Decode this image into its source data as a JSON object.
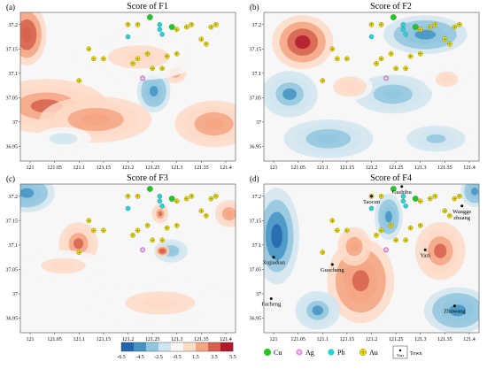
{
  "figure": {
    "colors": {
      "cu": "#22c722",
      "ag": "#e38be3",
      "pb": "#22d5d8",
      "au": "#f2e600",
      "town": "#000000",
      "frame": "#666666"
    },
    "legend": {
      "items": [
        {
          "symbol": "cu-marker",
          "label": "Cu"
        },
        {
          "symbol": "ag-marker",
          "label": "Ag"
        },
        {
          "symbol": "pb-marker",
          "label": "Pb"
        },
        {
          "symbol": "au-marker",
          "label": "Au"
        },
        {
          "symbol": "town-marker",
          "label": "Town",
          "box_label": "Yazi"
        }
      ]
    }
  },
  "chart_data": {
    "type": "heatmap",
    "panels": [
      {
        "id": "F1",
        "letter": "(a)",
        "title": "Score of F1"
      },
      {
        "id": "F2",
        "letter": "(b)",
        "title": "Score of F2"
      },
      {
        "id": "F3",
        "letter": "(c)",
        "title": "Score of F3"
      },
      {
        "id": "F4",
        "letter": "(d)",
        "title": "Score of F4"
      }
    ],
    "x_ticks": [
      "121",
      "121.05",
      "121.1",
      "121.15",
      "121.2",
      "121.25",
      "121.3",
      "121.35",
      "121.4"
    ],
    "y_ticks": [
      "37.2",
      "37.15",
      "37.1",
      "37.05",
      "37",
      "36.95"
    ],
    "x_tick_values": [
      121,
      121.05,
      121.1,
      121.15,
      121.2,
      121.25,
      121.3,
      121.35,
      121.4
    ],
    "y_tick_values": [
      37.2,
      37.15,
      37.1,
      37.05,
      37,
      36.95
    ],
    "xlim": [
      120.98,
      121.42
    ],
    "ylim": [
      36.92,
      37.225
    ],
    "colorbar": {
      "ticks": [
        "-6.5",
        "-4.5",
        "-2.5",
        "-0.5",
        "1.5",
        "3.5",
        "5.5"
      ],
      "range": [
        -6.5,
        5.5
      ],
      "colors": [
        "#2166ac",
        "#4393c3",
        "#92c5de",
        "#d1e5f0",
        "#f7f7f7",
        "#fddbc7",
        "#f4a582",
        "#d6604d",
        "#b2182b"
      ]
    },
    "deposits": {
      "cu": [
        [
          121.245,
          37.215
        ],
        [
          121.29,
          37.195
        ]
      ],
      "ag": [
        [
          121.23,
          37.09
        ]
      ],
      "pb": [
        [
          121.265,
          37.2
        ],
        [
          121.265,
          37.19
        ],
        [
          121.2,
          37.175
        ],
        [
          121.27,
          37.18
        ]
      ],
      "au": [
        [
          121.2,
          37.2
        ],
        [
          121.22,
          37.2
        ],
        [
          121.3,
          37.19
        ],
        [
          121.32,
          37.195
        ],
        [
          121.33,
          37.2
        ],
        [
          121.38,
          37.2
        ],
        [
          121.37,
          37.195
        ],
        [
          121.36,
          37.16
        ],
        [
          121.35,
          37.17
        ],
        [
          121.24,
          37.14
        ],
        [
          121.3,
          37.14
        ],
        [
          121.28,
          37.135
        ],
        [
          121.15,
          37.13
        ],
        [
          121.13,
          37.13
        ],
        [
          121.12,
          37.15
        ],
        [
          121.22,
          37.13
        ],
        [
          121.25,
          37.11
        ],
        [
          121.27,
          37.11
        ],
        [
          121.1,
          37.085
        ],
        [
          121.21,
          37.12
        ]
      ],
      "towns": [
        {
          "name": "Taocun",
          "lon": 121.2,
          "lat": 37.2
        },
        {
          "name": "Gushibu",
          "lon": 121.262,
          "lat": 37.22
        },
        {
          "name": "Wangge\nzhuang",
          "lon": 121.385,
          "lat": 37.18
        },
        {
          "name": "Xujiadian",
          "lon": 121.0,
          "lat": 37.075
        },
        {
          "name": "Guocheng",
          "lon": 121.12,
          "lat": 37.06
        },
        {
          "name": "Yazi",
          "lon": 121.31,
          "lat": 37.09
        },
        {
          "name": "Facheng",
          "lon": 120.995,
          "lat": 36.99
        },
        {
          "name": "Zhuwang",
          "lon": 121.37,
          "lat": 36.975
        }
      ]
    }
  }
}
